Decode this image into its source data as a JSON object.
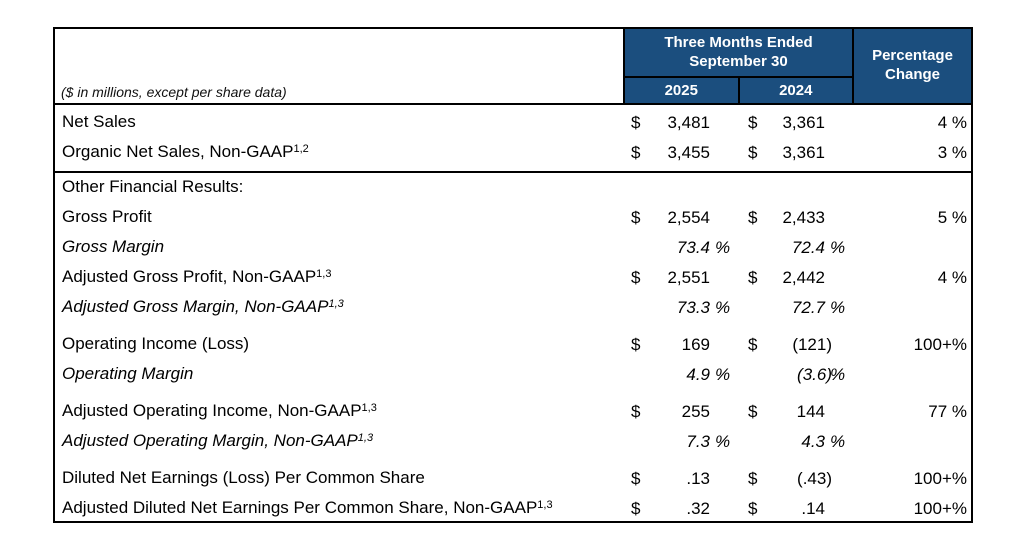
{
  "table": {
    "note": "($ in millions, except per share data)",
    "header": {
      "period_title": "Three Months Ended September 30",
      "col_2025": "2025",
      "col_2024": "2024",
      "pct_change": "Percentage Change"
    },
    "colors": {
      "header_bg": "#1b4e7e",
      "border": "#000000",
      "header_text": "#ffffff"
    },
    "rows": [
      {
        "label": "Net Sales",
        "sup": "",
        "style": "normal",
        "rule": false,
        "gap": false,
        "d25": "$",
        "v25": "3,481",
        "s25": "",
        "d24": "$",
        "v24": "3,361",
        "s24": "",
        "pct": "4 %"
      },
      {
        "label": "Organic Net Sales, Non-GAAP",
        "sup": "1,2",
        "style": "normal",
        "rule": false,
        "gap": false,
        "d25": "$",
        "v25": "3,455",
        "s25": "",
        "d24": "$",
        "v24": "3,361",
        "s24": "",
        "pct": "3 %"
      },
      {
        "label": "Other Financial Results:",
        "sup": "",
        "style": "normal",
        "rule": true,
        "gap": false,
        "d25": "",
        "v25": "",
        "s25": "",
        "d24": "",
        "v24": "",
        "s24": "",
        "pct": ""
      },
      {
        "label": "Gross Profit",
        "sup": "",
        "style": "normal",
        "rule": false,
        "gap": false,
        "d25": "$",
        "v25": "2,554",
        "s25": "",
        "d24": "$",
        "v24": "2,433",
        "s24": "",
        "pct": "5 %"
      },
      {
        "label": "Gross Margin",
        "sup": "",
        "style": "italic",
        "rule": false,
        "gap": false,
        "d25": "",
        "v25": "73.4",
        "s25": "%",
        "d24": "",
        "v24": "72.4",
        "s24": "%",
        "pct": ""
      },
      {
        "label": "Adjusted Gross Profit, Non-GAAP",
        "sup": "1,3",
        "style": "normal",
        "rule": false,
        "gap": false,
        "d25": "$",
        "v25": "2,551",
        "s25": "",
        "d24": "$",
        "v24": "2,442",
        "s24": "",
        "pct": "4 %"
      },
      {
        "label": "Adjusted Gross Margin, Non-GAAP",
        "sup": "1,3",
        "style": "italic",
        "rule": false,
        "gap": false,
        "d25": "",
        "v25": "73.3",
        "s25": "%",
        "d24": "",
        "v24": "72.7",
        "s24": "%",
        "pct": ""
      },
      {
        "label": "Operating Income (Loss)",
        "sup": "",
        "style": "normal",
        "rule": false,
        "gap": true,
        "d25": "$",
        "v25": "169",
        "s25": "",
        "d24": "$",
        "v24": "(121)",
        "s24": "",
        "pct": "100+%"
      },
      {
        "label": "Operating Margin",
        "sup": "",
        "style": "italic",
        "rule": false,
        "gap": false,
        "d25": "",
        "v25": "4.9",
        "s25": "%",
        "d24": "",
        "v24": "(3.6)",
        "s24": "%",
        "pct": ""
      },
      {
        "label": "Adjusted Operating Income, Non-GAAP",
        "sup": "1,3",
        "style": "normal",
        "rule": false,
        "gap": true,
        "d25": "$",
        "v25": "255",
        "s25": "",
        "d24": "$",
        "v24": "144",
        "s24": "",
        "pct": "77 %"
      },
      {
        "label": "Adjusted Operating Margin, Non-GAAP",
        "sup": "1,3",
        "style": "italic",
        "rule": false,
        "gap": false,
        "d25": "",
        "v25": "7.3",
        "s25": "%",
        "d24": "",
        "v24": "4.3",
        "s24": "%",
        "pct": ""
      },
      {
        "label": "Diluted Net Earnings (Loss) Per Common Share",
        "sup": "",
        "style": "normal",
        "rule": false,
        "gap": true,
        "d25": "$",
        "v25": ".13",
        "s25": "",
        "d24": "$",
        "v24": "(.43)",
        "s24": "",
        "pct": "100+%"
      },
      {
        "label": "Adjusted Diluted Net Earnings Per Common Share, Non-GAAP",
        "sup": "1,3",
        "style": "normal",
        "rule": false,
        "gap": false,
        "d25": "$",
        "v25": ".32",
        "s25": "",
        "d24": "$",
        "v24": ".14",
        "s24": "",
        "pct": "100+%"
      }
    ]
  }
}
